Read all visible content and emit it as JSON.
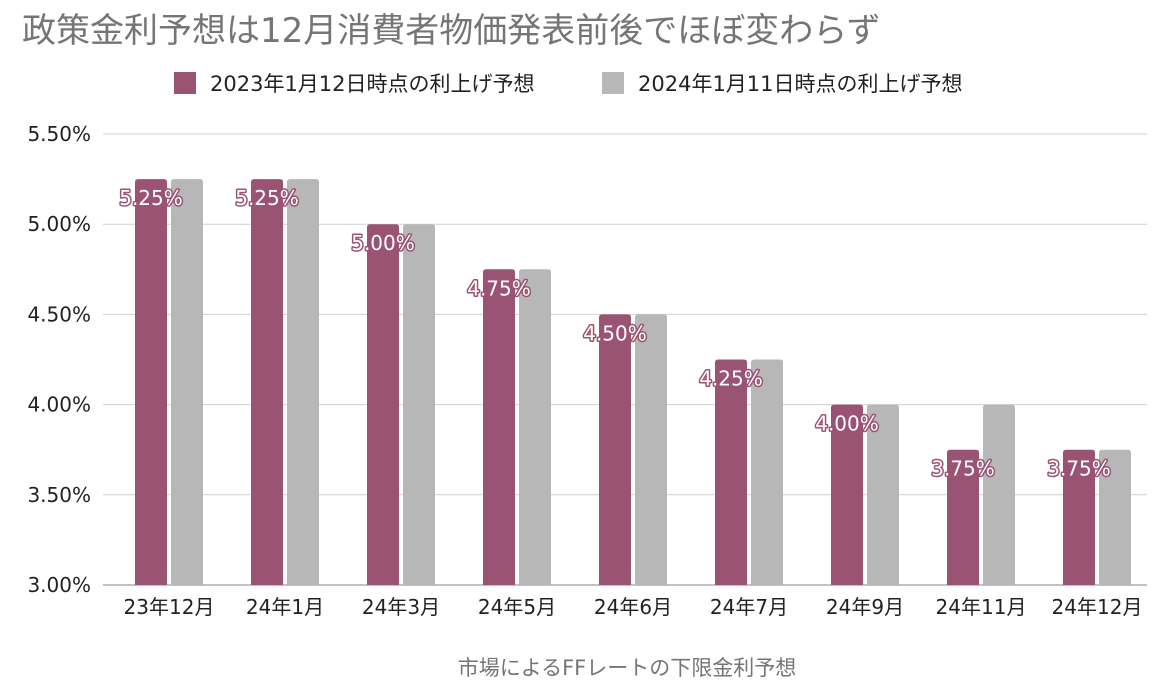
{
  "chart_data": {
    "type": "bar",
    "title": "政策金利予想は12月消費者物価発表前後でほぼ変わらず",
    "xlabel": "市場によるFFレートの下限金利予想",
    "ylabel": "",
    "categories": [
      "23年12月",
      "24年1月",
      "24年3月",
      "24年5月",
      "24年6月",
      "24年7月",
      "24年9月",
      "24年11月",
      "24年12月"
    ],
    "series": [
      {
        "name": "2023年1月12日時点の利上げ予想",
        "color": "#9b5374",
        "values": [
          5.25,
          5.25,
          5.0,
          4.75,
          4.5,
          4.25,
          4.0,
          3.75,
          3.75
        ],
        "labels": [
          "5.25%",
          "5.25%",
          "5.00%",
          "4.75%",
          "4.50%",
          "4.25%",
          "4.00%",
          "3.75%",
          "3.75%"
        ]
      },
      {
        "name": "2024年1月11日時点の利上げ予想",
        "color": "#b7b7b7",
        "values": [
          5.25,
          5.25,
          5.0,
          4.75,
          4.5,
          4.25,
          4.0,
          4.0,
          3.75
        ]
      }
    ],
    "ylim": [
      3.0,
      5.5
    ],
    "yticks": [
      "3.00%",
      "3.50%",
      "4.00%",
      "4.50%",
      "5.00%",
      "5.50%"
    ],
    "ytick_values": [
      3.0,
      3.5,
      4.0,
      4.5,
      5.0,
      5.5
    ],
    "grid": true,
    "legend_position": "top-center"
  }
}
